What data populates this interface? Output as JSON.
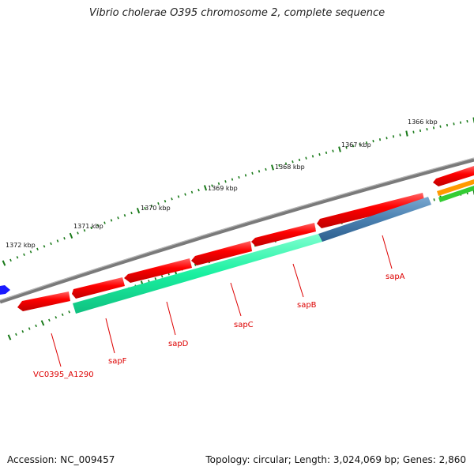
{
  "title": "Vibrio cholerae O395 chromosome 2, complete sequence",
  "footer": {
    "accession": "Accession: NC_009457",
    "stats": "Topology: circular; Length: 3,024,069 bp; Genes: 2,860"
  },
  "ruler": {
    "unit": "kbp",
    "labels": [
      "1366 kbp",
      "1367 kbp",
      "1368 kbp",
      "1369 kbp",
      "1370 kbp",
      "1371 kbp",
      "1372 kbp"
    ]
  },
  "genes": [
    {
      "name": "sapA",
      "color": "#ff0000"
    },
    {
      "name": "sapB",
      "color": "#ff0000"
    },
    {
      "name": "sapC",
      "color": "#ff0000"
    },
    {
      "name": "sapD",
      "color": "#ff0000"
    },
    {
      "name": "sapF",
      "color": "#ff0000"
    },
    {
      "name": "VC0395_A1290",
      "color": "#ff0000"
    }
  ],
  "colors": {
    "backbone": "#808080",
    "gene_red": "#ff1a1a",
    "operon_green": "#1af2a0",
    "operon_blue": "#4a80b0",
    "tick_green": "#1a7a1a",
    "label_red": "#dd0000",
    "gene_blue": "#1a1aff",
    "orange": "#ff9900",
    "green": "#33cc33"
  }
}
